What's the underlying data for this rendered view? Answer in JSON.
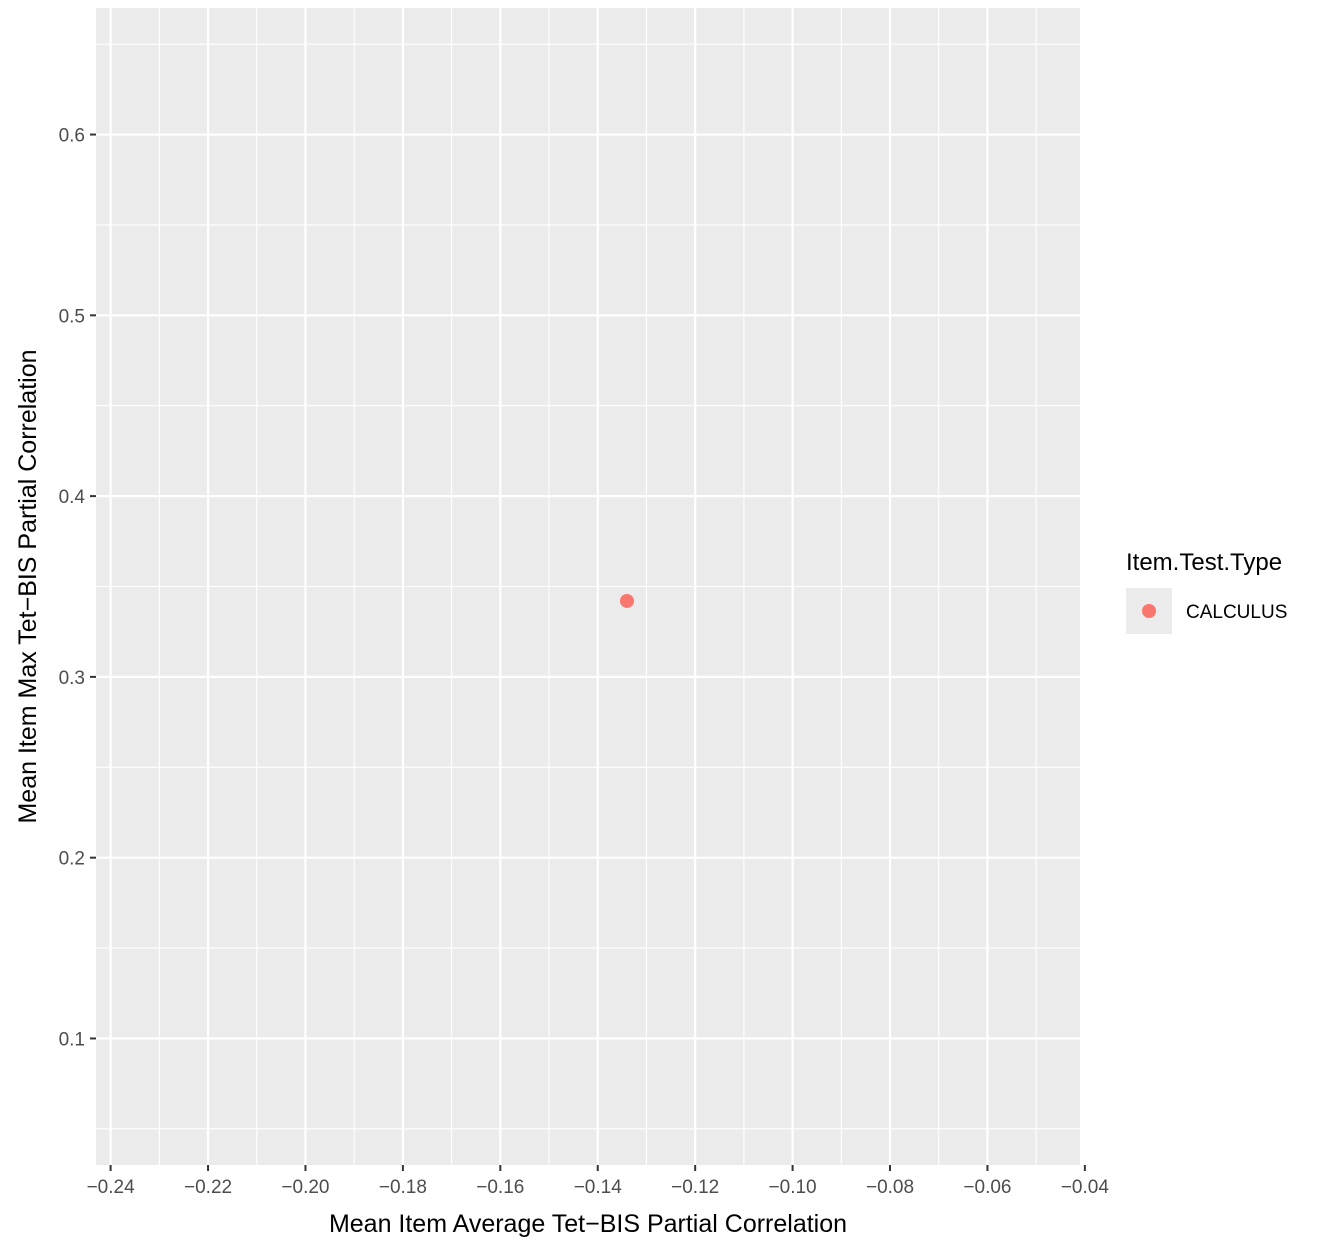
{
  "chart_data": {
    "type": "scatter",
    "title": "",
    "xlabel": "Mean Item Average Tet−BIS Partial Correlation",
    "ylabel": "Mean Item Max Tet−BIS Partial Correlation",
    "xlim": [
      -0.243,
      -0.041
    ],
    "ylim": [
      0.03,
      0.67
    ],
    "x_ticks": [
      -0.24,
      -0.22,
      -0.2,
      -0.18,
      -0.16,
      -0.14,
      -0.12,
      -0.1,
      -0.08,
      -0.06,
      -0.04
    ],
    "x_tick_labels": [
      "−0.24",
      "−0.22",
      "−0.20",
      "−0.18",
      "−0.16",
      "−0.14",
      "−0.12",
      "−0.10",
      "−0.08",
      "−0.06",
      "−0.04"
    ],
    "y_ticks": [
      0.1,
      0.2,
      0.3,
      0.4,
      0.5,
      0.6
    ],
    "y_tick_labels": [
      "0.1",
      "0.2",
      "0.3",
      "0.4",
      "0.5",
      "0.6"
    ],
    "grid": true,
    "legend": {
      "title": "Item.Test.Type",
      "placement": "right",
      "entries": [
        {
          "label": "CALCULUS",
          "color": "#F8766D"
        }
      ]
    },
    "series": [
      {
        "name": "CALCULUS",
        "color": "#F8766D",
        "points": [
          {
            "x": -0.134,
            "y": 0.342
          }
        ]
      }
    ]
  },
  "colors": {
    "panel_background": "#EBEBEB",
    "grid_major": "#FFFFFF",
    "tick_color": "#333333",
    "tick_label_color": "#4D4D4D",
    "axis_title_color": "#000000"
  }
}
